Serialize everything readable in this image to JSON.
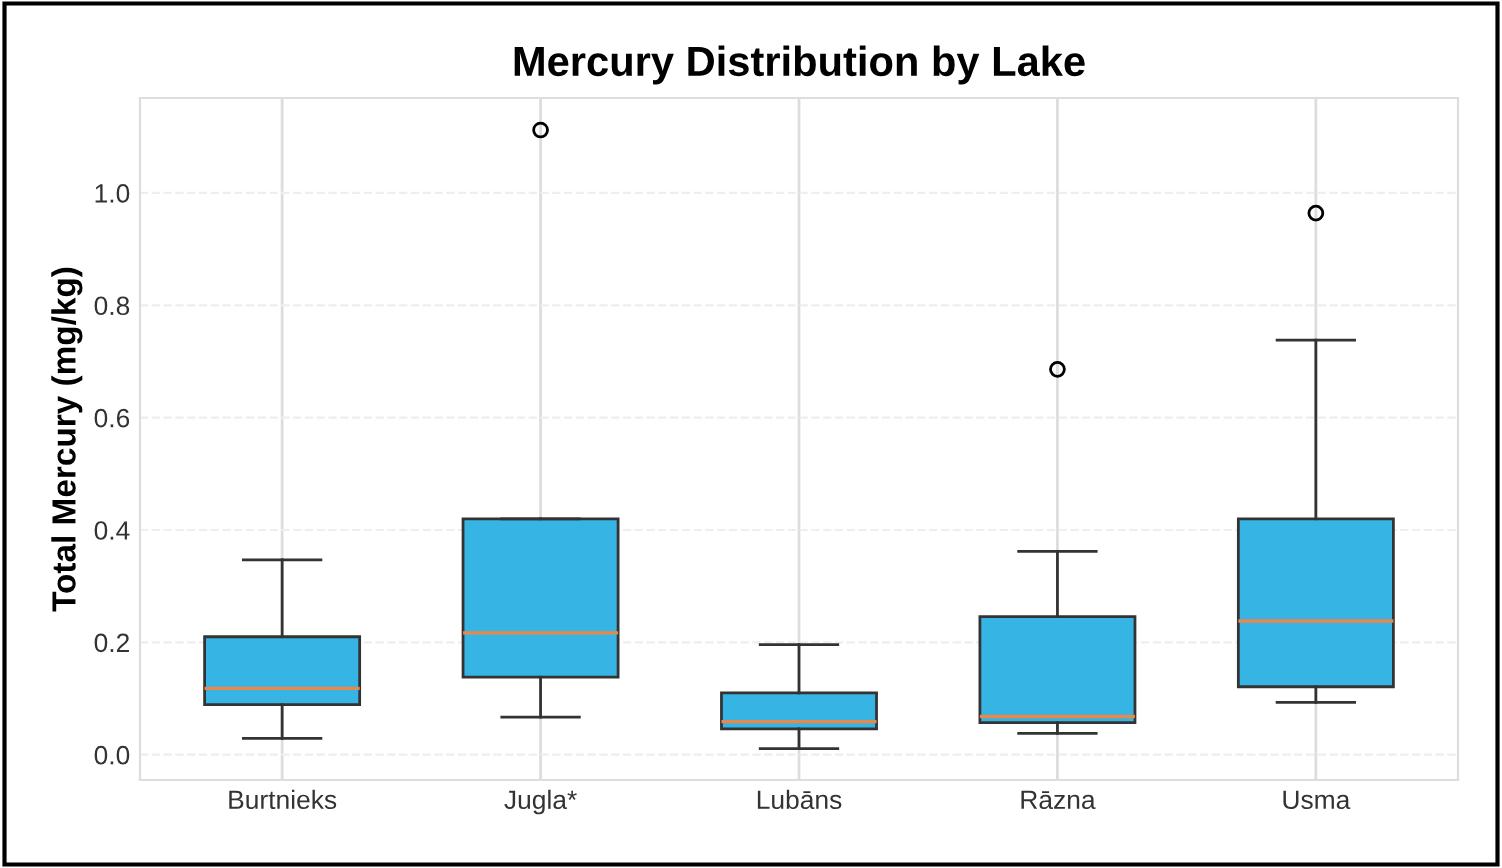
{
  "chart_data": {
    "type": "box",
    "title": "Mercury Distribution by Lake",
    "ylabel": "Total Mercury (mg/kg)",
    "categories": [
      "Burtnieks",
      "Jugla*",
      "Lubāns",
      "Rāzna",
      "Usma"
    ],
    "series": [
      {
        "color": "#36b5e5",
        "boxes": [
          {
            "low": 0.029,
            "q1": 0.089,
            "median": 0.118,
            "q3": 0.21,
            "high": 0.347
          },
          {
            "low": 0.067,
            "q1": 0.138,
            "median": 0.217,
            "q3": 0.42,
            "high": 0.42,
            "outliers": [
              1.112
            ]
          },
          {
            "low": 0.011,
            "q1": 0.046,
            "median": 0.059,
            "q3": 0.11,
            "high": 0.196
          },
          {
            "low": 0.038,
            "q1": 0.057,
            "median": 0.068,
            "q3": 0.246,
            "high": 0.362,
            "outliers": [
              0.686
            ]
          },
          {
            "low": 0.093,
            "q1": 0.121,
            "median": 0.238,
            "q3": 0.42,
            "high": 0.738,
            "outliers": [
              0.964
            ]
          }
        ]
      }
    ],
    "ylim": [
      -0.045,
      1.169
    ],
    "yticks": [
      {
        "value": 0,
        "label": "0.0"
      },
      {
        "value": 0.2,
        "label": "0.2"
      },
      {
        "value": 0.4,
        "label": "0.4"
      },
      {
        "value": 0.6,
        "label": "0.6"
      },
      {
        "value": 0.8,
        "label": "0.8"
      },
      {
        "value": 1,
        "label": "1.0"
      }
    ],
    "grid": true
  }
}
